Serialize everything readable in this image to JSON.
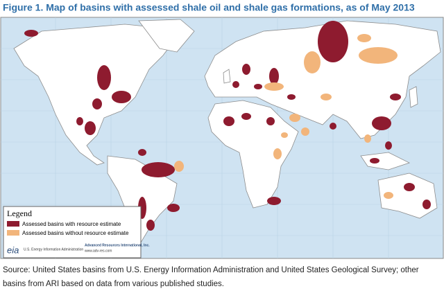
{
  "header": {
    "title": "Figure 1. Map of basins with assessed shale oil and shale gas formations, as of May 2013"
  },
  "legend": {
    "title": "Legend",
    "items": [
      {
        "label": "Assessed basins with resource estimate",
        "color": "#8e1b2f"
      },
      {
        "label": "Assessed basins without resource estimate",
        "color": "#f2b57b"
      }
    ]
  },
  "logos": {
    "eia": "eia",
    "eia_name": "U.S. Energy Information Administration",
    "ari_name": "Advanced Resources International, Inc.",
    "ari_url": "www.adv-res.com"
  },
  "footer": {
    "source": "Source: United States basins from U.S. Energy Information Administration and United States Geological Survey; other basins from ARI based on data from various published studies."
  }
}
